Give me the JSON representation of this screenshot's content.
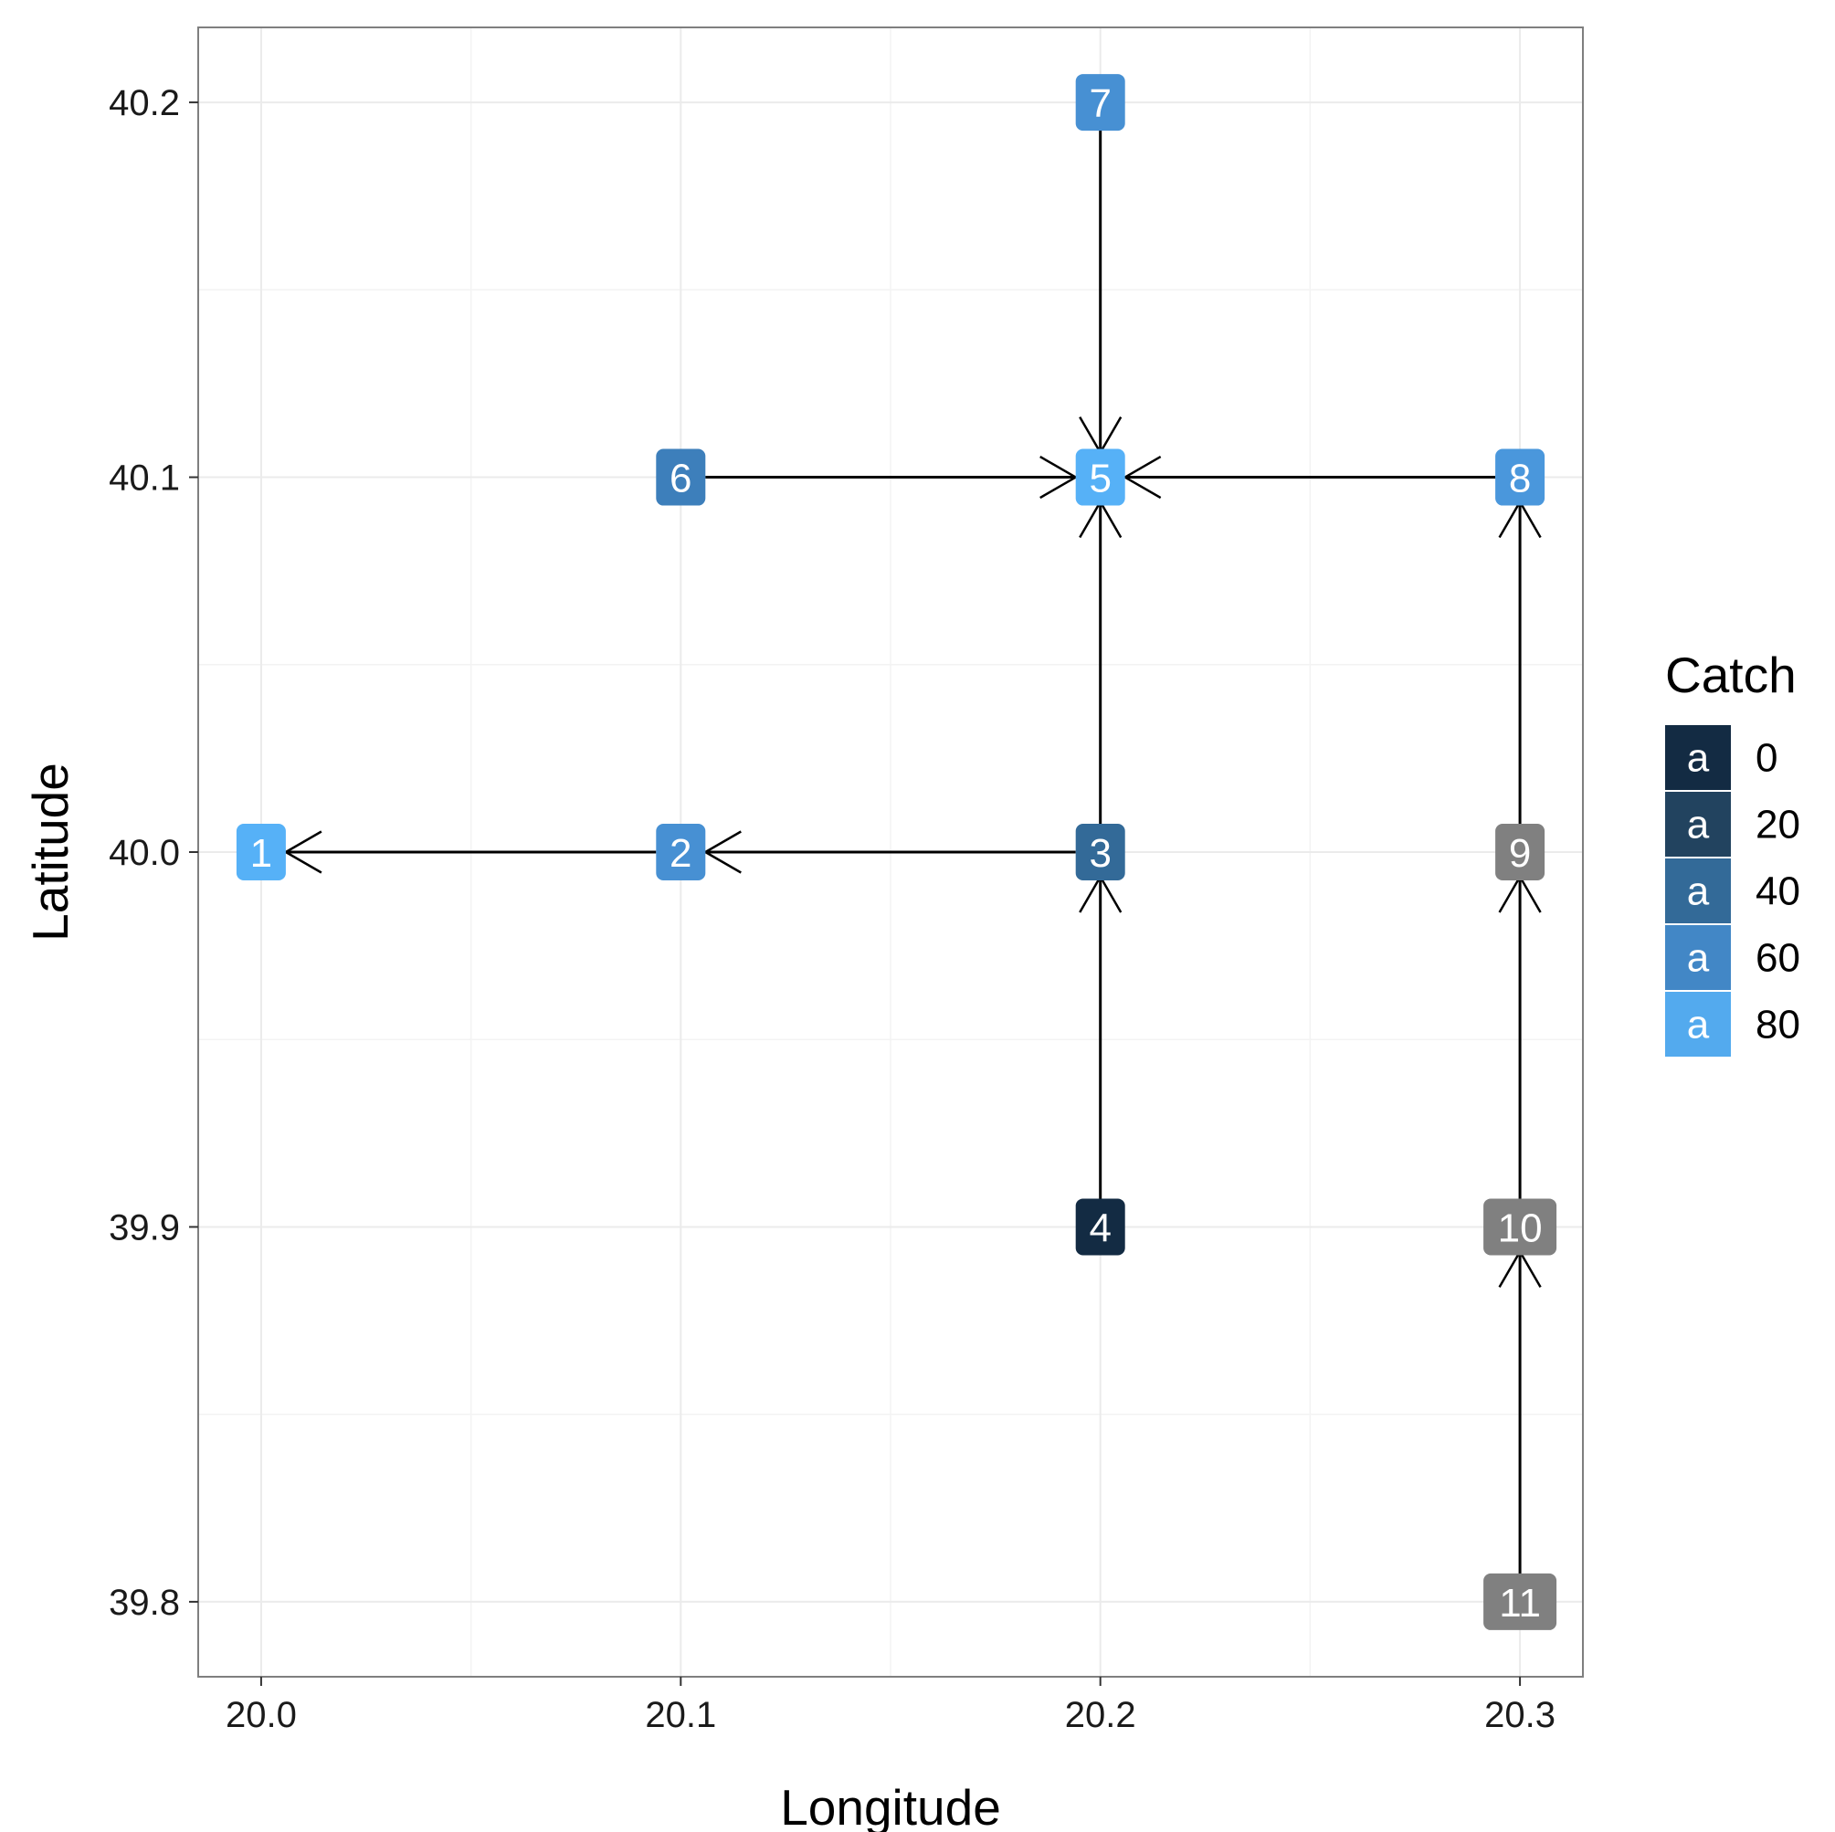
{
  "chart_data": {
    "type": "network",
    "xlabel": "Longitude",
    "ylabel": "Latitude",
    "xlim": [
      19.985,
      20.315
    ],
    "ylim": [
      39.78,
      40.22
    ],
    "x_ticks": [
      "20.0",
      "20.1",
      "20.2",
      "20.3"
    ],
    "x_tick_values": [
      20.0,
      20.1,
      20.2,
      20.3
    ],
    "y_ticks": [
      "39.8",
      "39.9",
      "40.0",
      "40.1",
      "40.2"
    ],
    "y_tick_values": [
      39.8,
      39.9,
      40.0,
      40.1,
      40.2
    ],
    "grid": true,
    "nodes": [
      {
        "id": "1",
        "x": 20.0,
        "y": 40.0,
        "catch": 85,
        "color": "#56b1f7"
      },
      {
        "id": "2",
        "x": 20.1,
        "y": 40.0,
        "catch": 65,
        "color": "#4790d3"
      },
      {
        "id": "3",
        "x": 20.2,
        "y": 40.0,
        "catch": 40,
        "color": "#336a98"
      },
      {
        "id": "4",
        "x": 20.2,
        "y": 39.9,
        "catch": 0,
        "color": "#132b43"
      },
      {
        "id": "5",
        "x": 20.2,
        "y": 40.1,
        "catch": 85,
        "color": "#56b1f7"
      },
      {
        "id": "6",
        "x": 20.1,
        "y": 40.1,
        "catch": 55,
        "color": "#3d7fbb"
      },
      {
        "id": "7",
        "x": 20.2,
        "y": 40.2,
        "catch": 65,
        "color": "#4790d3"
      },
      {
        "id": "8",
        "x": 20.3,
        "y": 40.1,
        "catch": 70,
        "color": "#4a97dc"
      },
      {
        "id": "9",
        "x": 20.3,
        "y": 40.0,
        "catch": null,
        "color": "#808080"
      },
      {
        "id": "10",
        "x": 20.3,
        "y": 39.9,
        "catch": null,
        "color": "#808080"
      },
      {
        "id": "11",
        "x": 20.3,
        "y": 39.8,
        "catch": null,
        "color": "#808080"
      }
    ],
    "edges": [
      {
        "from": "2",
        "to": "1"
      },
      {
        "from": "3",
        "to": "2"
      },
      {
        "from": "4",
        "to": "3"
      },
      {
        "from": "3",
        "to": "5"
      },
      {
        "from": "6",
        "to": "5"
      },
      {
        "from": "7",
        "to": "5"
      },
      {
        "from": "8",
        "to": "5"
      },
      {
        "from": "9",
        "to": "8"
      },
      {
        "from": "10",
        "to": "9"
      },
      {
        "from": "11",
        "to": "10"
      }
    ],
    "legend": {
      "title": "Catch",
      "position": "right",
      "key_glyph": "a",
      "entries": [
        {
          "label": "0",
          "color": "#132b43"
        },
        {
          "label": "20",
          "color": "#22435f"
        },
        {
          "label": "40",
          "color": "#336a98"
        },
        {
          "label": "60",
          "color": "#4287c6"
        },
        {
          "label": "80",
          "color": "#53aaee"
        }
      ]
    }
  }
}
